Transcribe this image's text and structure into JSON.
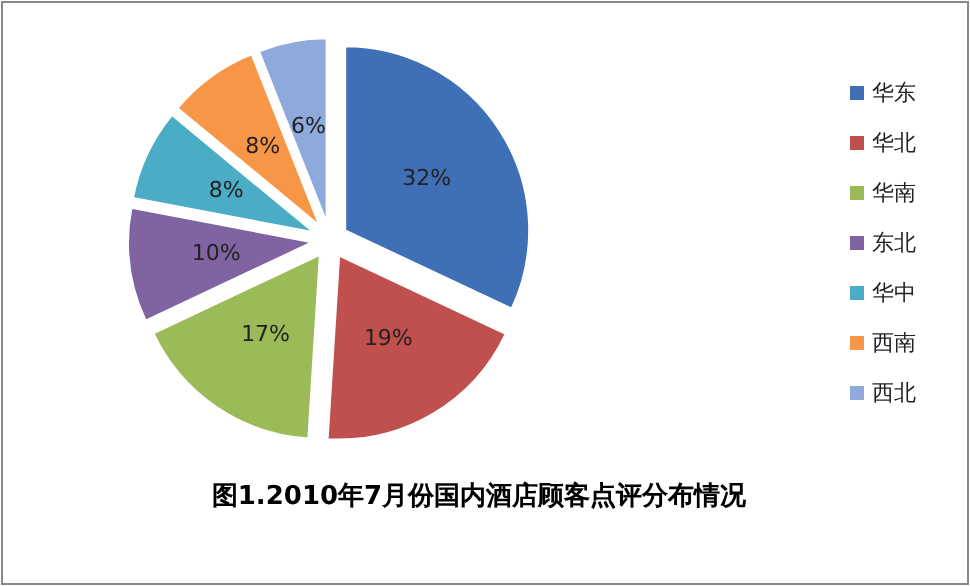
{
  "chart_data": {
    "type": "pie",
    "title": "图1.2010年7月份国内酒店顾客点评分布情况",
    "categories": [
      "华东",
      "华北",
      "华南",
      "东北",
      "华中",
      "西南",
      "西北"
    ],
    "values": [
      32,
      19,
      17,
      10,
      8,
      8,
      6
    ],
    "value_labels": [
      "32%",
      "19%",
      "17%",
      "10%",
      "8%",
      "8%",
      "6%"
    ],
    "colors": [
      "#3f6fb5",
      "#c0504d",
      "#9bbb59",
      "#8064a2",
      "#4bacc6",
      "#f79646",
      "#8ea9db"
    ],
    "legend": "right"
  }
}
